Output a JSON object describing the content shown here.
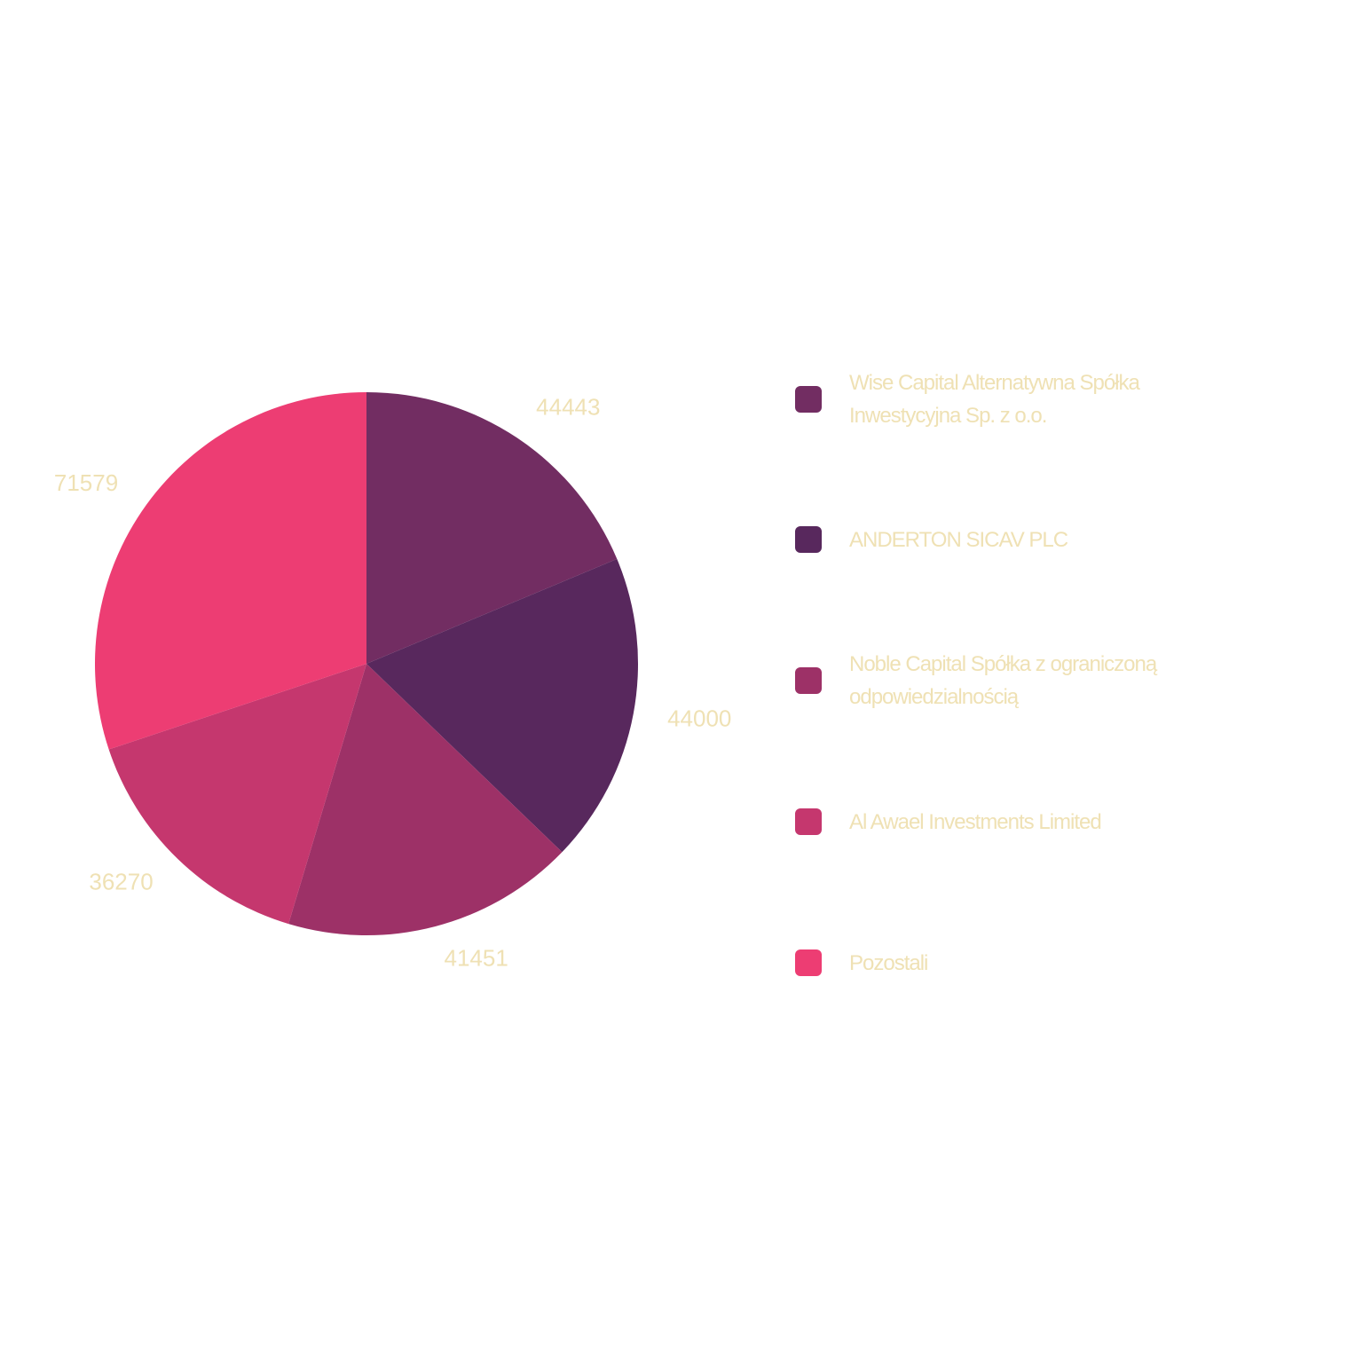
{
  "chart_data": {
    "type": "pie",
    "start_angle_deg": 0,
    "direction": "clockwise",
    "slices": [
      {
        "name": "Wise Capital Alternatywna Spółka Inwestycyjna Sp. z o.o.",
        "value": 44443,
        "label": "44443",
        "color": "#722d62"
      },
      {
        "name": "ANDERTON SICAV PLC",
        "value": 44000,
        "label": "44000",
        "color": "#58285d"
      },
      {
        "name": "Noble Capital Spółka z ograniczoną odpowiedzialnością",
        "value": 41451,
        "label": "41451",
        "color": "#9d3167"
      },
      {
        "name": "Al Awael Investments Limited",
        "value": 36270,
        "label": "36270",
        "color": "#c5376e"
      },
      {
        "name": "Pozostali",
        "value": 71579,
        "label": "71579",
        "color": "#ed3d73"
      }
    ],
    "legend_position": "right",
    "label_color": "#efe1b4"
  }
}
